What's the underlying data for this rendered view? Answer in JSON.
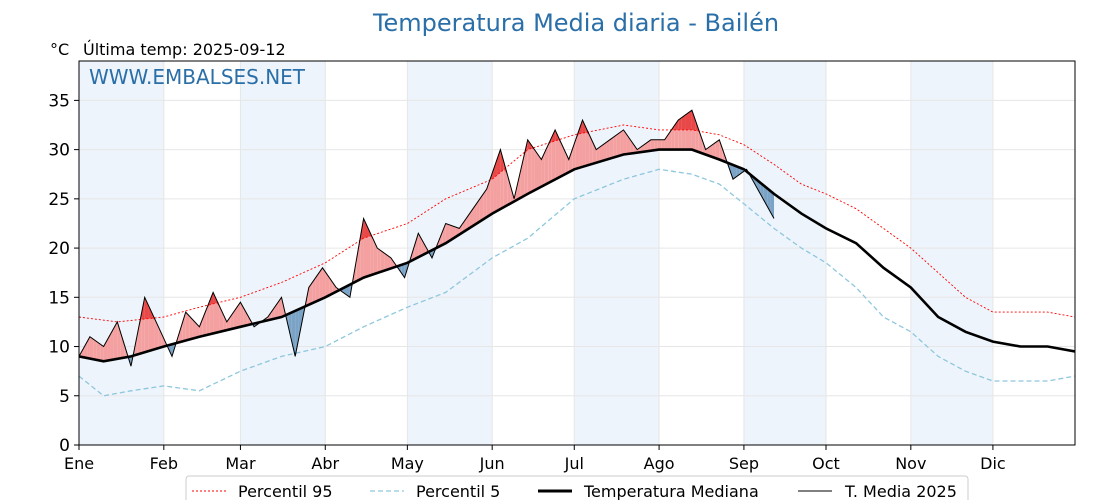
{
  "chart_data": {
    "type": "line",
    "title": "Temperatura Media diaria - Bailén",
    "unit_label": "°C",
    "last_temp_label": "Última temp: 2025-09-12",
    "watermark": "WWW.EMBALSES.NET",
    "ylim": [
      0,
      39
    ],
    "y_ticks": [
      0,
      5,
      10,
      15,
      20,
      25,
      30,
      35
    ],
    "x_ticks": [
      "Ene",
      "Feb",
      "Mar",
      "Abr",
      "May",
      "Jun",
      "Jul",
      "Ago",
      "Sep",
      "Oct",
      "Nov",
      "Dic"
    ],
    "x_tick_days": [
      1,
      32,
      60,
      91,
      121,
      152,
      182,
      213,
      244,
      274,
      305,
      335
    ],
    "x_range_days": [
      1,
      365
    ],
    "grid": true,
    "shaded_months": [
      "Ene",
      "Mar",
      "May",
      "Jul",
      "Sep",
      "Nov"
    ],
    "legend_position": "bottom",
    "legend": [
      "Percentil 95",
      "Percentil 5",
      "Temperatura Mediana",
      "T. Media 2025"
    ],
    "colors": {
      "p95": "#ff0000",
      "p5": "#8ec7dd",
      "median": "#000000",
      "current": "#000000",
      "above_median_fill": "#f4a0a0",
      "above_p95_fill": "#e84848",
      "below_median_fill": "#7aa3c6",
      "below_p5_fill": "#1f4e8a",
      "title": "#2a6fa8",
      "month_band": "#eef4fb"
    },
    "series": [
      {
        "name": "Percentil 95",
        "x": [
          1,
          15,
          32,
          45,
          60,
          75,
          91,
          105,
          121,
          135,
          152,
          165,
          182,
          200,
          213,
          225,
          235,
          244,
          255,
          265,
          274,
          285,
          295,
          305,
          315,
          325,
          335,
          345,
          355,
          365
        ],
        "values": [
          13,
          12.5,
          13,
          14,
          15,
          16.5,
          18.5,
          21,
          22.5,
          25,
          27,
          30,
          31.5,
          32.5,
          32,
          32,
          31.5,
          30.5,
          28.5,
          26.5,
          25.5,
          24,
          22,
          20,
          17.5,
          15,
          13.5,
          13.5,
          13.5,
          13
        ]
      },
      {
        "name": "Percentil 5",
        "x": [
          1,
          10,
          20,
          32,
          45,
          60,
          75,
          91,
          105,
          121,
          135,
          152,
          165,
          182,
          200,
          213,
          225,
          235,
          244,
          255,
          265,
          274,
          285,
          295,
          305,
          315,
          325,
          335,
          345,
          355,
          365
        ],
        "values": [
          7,
          5,
          5.5,
          6,
          5.5,
          7.5,
          9,
          10,
          12,
          14,
          15.5,
          19,
          21,
          25,
          27,
          28,
          27.5,
          26.5,
          24.5,
          22,
          20,
          18.5,
          16,
          13,
          11.5,
          9,
          7.5,
          6.5,
          6.5,
          6.5,
          7
        ]
      },
      {
        "name": "Temperatura Mediana",
        "x": [
          1,
          10,
          20,
          32,
          45,
          60,
          75,
          91,
          105,
          121,
          135,
          152,
          165,
          182,
          200,
          213,
          225,
          235,
          244,
          255,
          265,
          274,
          285,
          295,
          305,
          315,
          325,
          335,
          345,
          355,
          365
        ],
        "values": [
          9,
          8.5,
          9,
          10,
          11,
          12,
          13,
          15,
          17,
          18.5,
          20.5,
          23.5,
          25.5,
          28,
          29.5,
          30,
          30,
          29,
          28,
          25.5,
          23.5,
          22,
          20.5,
          18,
          16,
          13,
          11.5,
          10.5,
          10,
          10,
          9.5
        ]
      },
      {
        "name": "T. Media 2025",
        "x": [
          1,
          5,
          10,
          15,
          20,
          25,
          30,
          35,
          40,
          45,
          50,
          55,
          60,
          65,
          70,
          75,
          80,
          85,
          90,
          95,
          100,
          105,
          110,
          115,
          120,
          125,
          130,
          135,
          140,
          145,
          150,
          155,
          160,
          165,
          170,
          175,
          180,
          185,
          190,
          195,
          200,
          205,
          210,
          215,
          220,
          225,
          230,
          235,
          240,
          245,
          250,
          255
        ],
        "values": [
          9,
          11,
          10,
          12.5,
          8,
          15,
          12,
          9,
          13.5,
          12,
          15.5,
          12.5,
          14.5,
          12,
          13,
          15,
          9,
          16,
          18,
          16,
          15,
          23,
          20,
          19,
          17,
          21.5,
          19,
          22.5,
          22,
          24,
          26,
          30,
          25,
          31,
          29,
          32,
          29,
          33,
          30,
          31,
          32,
          30,
          31,
          31,
          33,
          34,
          30,
          31,
          27,
          28,
          25.5,
          23
        ]
      }
    ]
  }
}
